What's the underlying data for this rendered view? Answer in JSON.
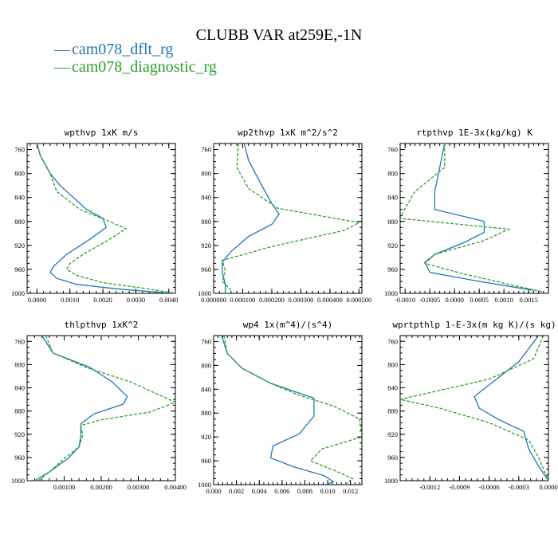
{
  "figure": {
    "title": "CLUBB VAR at259E,-1N",
    "legend": [
      {
        "label": "cam078_dflt_rg",
        "color": "#1f77b4",
        "dash": "solid"
      },
      {
        "label": "cam078_diagnostic_rg",
        "color": "#2ca02c",
        "dash": "dashed"
      }
    ]
  },
  "chart_data": [
    {
      "type": "line",
      "title": "wpthvp 1xK m/s",
      "xlim": [
        -0.0003,
        0.0042
      ],
      "ylim": [
        1000,
        750
      ],
      "x_ticks": [
        0.0,
        0.001,
        0.002,
        0.003,
        0.004
      ],
      "x_tick_labels": [
        "0.0000",
        "0.0010",
        "0.0020",
        "0.0030",
        "0.0040"
      ],
      "y_ticks": [
        760,
        800,
        840,
        880,
        920,
        960,
        1000
      ],
      "series": [
        {
          "name": "cam078_dflt_rg",
          "color": "#1f77b4",
          "dash": "solid",
          "x": [
            0.0,
            0.0001,
            0.0004,
            0.0007,
            0.0015,
            0.002,
            0.0021,
            0.0016,
            0.0009,
            0.0005,
            0.0004,
            0.0006,
            0.0012,
            0.0025,
            0.0041
          ],
          "y": [
            750,
            770,
            800,
            820,
            860,
            875,
            890,
            910,
            935,
            955,
            965,
            975,
            985,
            993,
            1000
          ]
        },
        {
          "name": "cam078_diagnostic_rg",
          "color": "#2ca02c",
          "dash": "dashed",
          "x": [
            0.0,
            0.0001,
            0.0004,
            0.0006,
            0.0013,
            0.0022,
            0.0027,
            0.0022,
            0.0014,
            0.001,
            0.0009,
            0.0012,
            0.002,
            0.0033,
            0.0042
          ],
          "y": [
            750,
            770,
            800,
            830,
            860,
            880,
            892,
            910,
            935,
            950,
            960,
            970,
            982,
            992,
            1000
          ]
        }
      ]
    },
    {
      "type": "line",
      "title": "wp2thvp 1xK m^2/s^2",
      "xlim": [
        0.0,
        0.00051
      ],
      "ylim": [
        1000,
        750
      ],
      "x_ticks": [
        0.0,
        0.0001,
        0.0002,
        0.0003,
        0.0004,
        0.0005
      ],
      "x_tick_labels": [
        "0.000000",
        "0.000100",
        "0.000200",
        "0.000300",
        "0.000400",
        "0.000500"
      ],
      "y_ticks": [
        760,
        800,
        840,
        880,
        920,
        960,
        1000
      ],
      "series": [
        {
          "name": "cam078_dflt_rg",
          "color": "#1f77b4",
          "dash": "solid",
          "x": [
            0.000105,
            0.00012,
            0.00016,
            0.0002,
            0.000225,
            0.0002,
            0.00012,
            6e-05,
            3e-05,
            3e-05,
            4e-05,
            4e-05
          ],
          "y": [
            750,
            778,
            815,
            850,
            868,
            885,
            905,
            930,
            948,
            965,
            985,
            1000
          ]
        },
        {
          "name": "cam078_diagnostic_rg",
          "color": "#2ca02c",
          "dash": "dashed",
          "x": [
            8.5e-05,
            8e-05,
            0.00012,
            0.00022,
            0.0005,
            0.00045,
            0.0002,
            3e-05,
            4e-05,
            3e-05,
            6e-05
          ],
          "y": [
            750,
            790,
            825,
            858,
            882,
            895,
            922,
            945,
            962,
            980,
            995
          ]
        }
      ]
    },
    {
      "type": "line",
      "title": "rtpthvp 1E-3x(kg/kg) K",
      "xlim": [
        -0.0011,
        0.0019
      ],
      "ylim": [
        1000,
        750
      ],
      "x_ticks": [
        -0.001,
        -0.0005,
        0.0,
        0.0005,
        0.001,
        0.0015
      ],
      "x_tick_labels": [
        "-0.0010",
        "-0.0005",
        "0.0000",
        "0.0005",
        "0.0010",
        "0.0015"
      ],
      "y_ticks": [
        760,
        800,
        840,
        880,
        920,
        960,
        1000
      ],
      "series": [
        {
          "name": "cam078_dflt_rg",
          "color": "#1f77b4",
          "dash": "solid",
          "x": [
            -0.0002,
            -0.0003,
            -0.0004,
            -0.0004,
            0.0006,
            0.0006,
            0.0002,
            -0.0004,
            -0.0006,
            -0.0005,
            0.0005,
            0.0016
          ],
          "y": [
            750,
            790,
            830,
            860,
            880,
            898,
            915,
            935,
            948,
            965,
            980,
            995
          ]
        },
        {
          "name": "cam078_diagnostic_rg",
          "color": "#2ca02c",
          "dash": "dashed",
          "x": [
            -0.0002,
            -0.0002,
            -0.0008,
            -0.001,
            -0.0011,
            0.0011,
            0.0006,
            -0.0004,
            -0.0006,
            0.0002,
            0.0018
          ],
          "y": [
            750,
            790,
            830,
            858,
            875,
            893,
            912,
            935,
            950,
            968,
            998
          ]
        }
      ]
    },
    {
      "type": "line",
      "title": "thlpthvp 1xK^2",
      "xlim": [
        0.0,
        0.004
      ],
      "ylim": [
        1000,
        750
      ],
      "x_ticks": [
        0.001,
        0.002,
        0.003,
        0.004
      ],
      "x_tick_labels": [
        "0.00100",
        "0.00200",
        "0.00300",
        "0.00400"
      ],
      "y_ticks": [
        760,
        800,
        840,
        880,
        920,
        960,
        1000
      ],
      "series": [
        {
          "name": "cam078_dflt_rg",
          "color": "#1f77b4",
          "dash": "solid",
          "x": [
            0.0004,
            0.0007,
            0.0017,
            0.0023,
            0.0027,
            0.0026,
            0.0018,
            0.00145,
            0.00145,
            0.0014,
            0.0011,
            0.0006,
            0.0002
          ],
          "y": [
            750,
            780,
            805,
            830,
            855,
            868,
            885,
            902,
            922,
            942,
            962,
            985,
            1000
          ]
        },
        {
          "name": "cam078_diagnostic_rg",
          "color": "#2ca02c",
          "dash": "dashed",
          "x": [
            0.0005,
            0.0007,
            0.0016,
            0.0028,
            0.004,
            0.0033,
            0.002,
            0.00145,
            0.0015,
            0.0014,
            0.001,
            0.0006,
            0.0003
          ],
          "y": [
            750,
            780,
            805,
            830,
            865,
            882,
            895,
            905,
            922,
            942,
            962,
            985,
            1000
          ]
        }
      ]
    },
    {
      "type": "line",
      "title": "wp4 1x(m^4)/(s^4)",
      "xlim": [
        0.0,
        0.013
      ],
      "ylim": [
        1000,
        750
      ],
      "x_ticks": [
        0.0,
        0.002,
        0.004,
        0.006,
        0.008,
        0.01,
        0.012
      ],
      "x_tick_labels": [
        "0.000",
        "0.002",
        "0.004",
        "0.006",
        "0.008",
        "0.010",
        "0.012"
      ],
      "y_ticks": [
        760,
        800,
        840,
        880,
        920,
        960,
        1000
      ],
      "series": [
        {
          "name": "cam078_dflt_rg",
          "color": "#1f77b4",
          "dash": "solid",
          "x": [
            0.0007,
            0.0012,
            0.0025,
            0.005,
            0.0088,
            0.0088,
            0.0075,
            0.0052,
            0.005,
            0.007,
            0.0097,
            0.0105,
            0.0098
          ],
          "y": [
            750,
            780,
            805,
            830,
            855,
            885,
            915,
            935,
            955,
            970,
            985,
            995,
            1000
          ]
        },
        {
          "name": "cam078_diagnostic_rg",
          "color": "#2ca02c",
          "dash": "dashed",
          "x": [
            0.0009,
            0.0012,
            0.0025,
            0.005,
            0.0075,
            0.0105,
            0.0128,
            0.013,
            0.0095,
            0.0085,
            0.0108,
            0.0122,
            0.0115
          ],
          "y": [
            750,
            780,
            805,
            830,
            850,
            868,
            890,
            920,
            940,
            960,
            978,
            990,
            1000
          ]
        }
      ]
    },
    {
      "type": "line",
      "title": "wprtpthlp 1-E-3x(m kg K)/(s kg)",
      "xlim": [
        -0.0015,
        0.0
      ],
      "ylim": [
        1000,
        750
      ],
      "x_ticks": [
        -0.0012,
        -0.0009,
        -0.0006,
        -0.0003,
        0.0
      ],
      "x_tick_labels": [
        "-0.0012",
        "-0.0009",
        "-0.0006",
        "-0.0003",
        "0.0000"
      ],
      "y_ticks": [
        760,
        800,
        840,
        880,
        920,
        960,
        1000
      ],
      "series": [
        {
          "name": "cam078_dflt_rg",
          "color": "#1f77b4",
          "dash": "solid",
          "x": [
            -0.0001,
            -0.0003,
            -0.0006,
            -0.00075,
            -0.0007,
            -0.0005,
            -0.00025,
            -0.0002,
            -0.0001,
            0.0
          ],
          "y": [
            750,
            795,
            835,
            855,
            875,
            895,
            915,
            945,
            975,
            1000
          ]
        },
        {
          "name": "cam078_diagnostic_rg",
          "color": "#2ca02c",
          "dash": "dashed",
          "x": [
            -5e-05,
            -0.00015,
            -0.0006,
            -0.0015,
            -0.0011,
            -0.0006,
            -0.0002,
            -0.0001,
            0.0
          ],
          "y": [
            750,
            790,
            825,
            860,
            875,
            900,
            930,
            960,
            1000
          ]
        }
      ]
    }
  ]
}
